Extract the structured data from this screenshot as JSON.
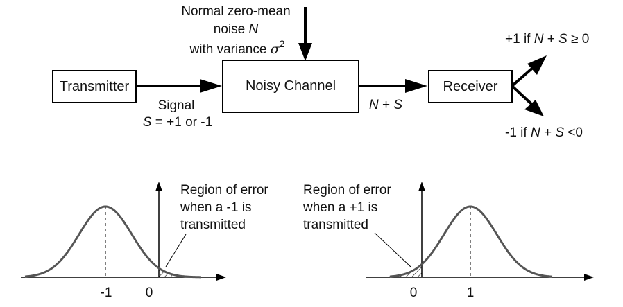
{
  "noise": {
    "line1": "Normal zero-mean",
    "line2_prefix": "noise ",
    "line2_var": "N",
    "line3_prefix": "with variance ",
    "line3_symbol": "σ",
    "line3_exp": "2"
  },
  "boxes": {
    "transmitter": "Transmitter",
    "channel": "Noisy Channel",
    "receiver": "Receiver"
  },
  "signal": {
    "line1": "Signal",
    "line2_var": "S",
    "line2_rest": " = +1 or -1"
  },
  "channel_output": {
    "n": "N",
    "plus": " + ",
    "s": "S"
  },
  "decision_upper": {
    "prefix": "+1 if ",
    "n": "N",
    "plus": " + ",
    "s": "S",
    "geq": "≥",
    "rest": " 0"
  },
  "decision_lower": {
    "prefix": "-1 if ",
    "n": "N",
    "plus": " +  ",
    "s": "S",
    "rest": " <0"
  },
  "plot_left": {
    "label_line1": "Region of error",
    "label_line2": "when a -1 is",
    "label_line3": "transmitted",
    "tick_mean": "-1",
    "tick_zero": "0"
  },
  "plot_right": {
    "label_line1": "Region of error",
    "label_line2": "when a +1 is",
    "label_line3": "transmitted",
    "tick_zero": "0",
    "tick_mean": "1"
  }
}
